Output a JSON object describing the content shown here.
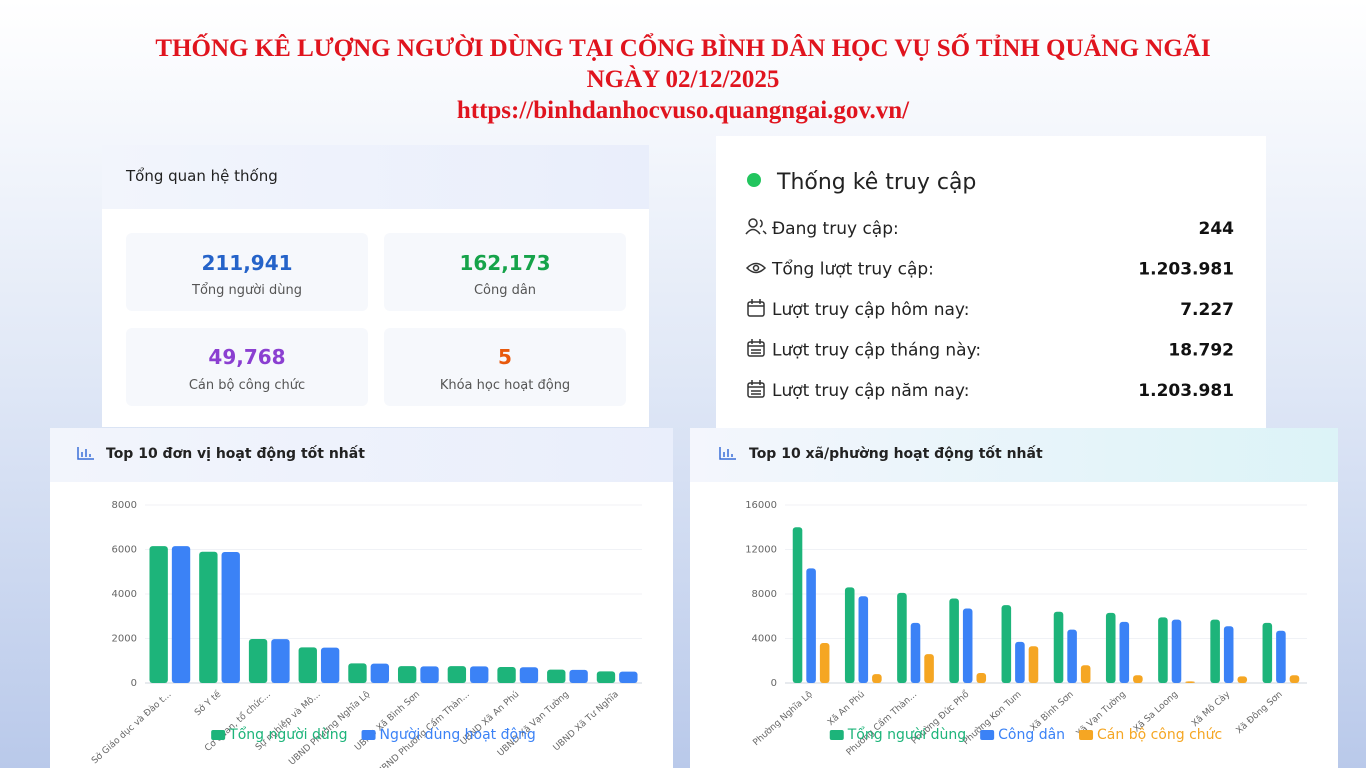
{
  "header": {
    "title": "THỐNG KÊ LƯỢNG NGƯỜI DÙNG TẠI CỔNG BÌNH DÂN HỌC VỤ SỐ TỈNH QUẢNG NGÃI",
    "date": "NGÀY 02/12/2025",
    "url": "https://binhdanhocvuso.quangngai.gov.vn/"
  },
  "overview": {
    "title": "Tổng quan hệ thống",
    "stats": [
      {
        "value": "211,941",
        "label": "Tổng người dùng"
      },
      {
        "value": "162,173",
        "label": "Công dân"
      },
      {
        "value": "49,768",
        "label": "Cán bộ công chức"
      },
      {
        "value": "5",
        "label": "Khóa học hoạt động"
      }
    ]
  },
  "access": {
    "title": "Thống kê truy cập",
    "rows": [
      {
        "label": "Đang truy cập:",
        "value": "244"
      },
      {
        "label": "Tổng lượt truy cập:",
        "value": "1.203.981"
      },
      {
        "label": "Lượt truy cập hôm nay:",
        "value": "7.227"
      },
      {
        "label": "Lượt truy cập tháng này:",
        "value": "18.792"
      },
      {
        "label": "Lượt truy cập năm nay:",
        "value": "1.203.981"
      }
    ]
  },
  "chart_data": [
    {
      "type": "bar",
      "title": "Top 10 đơn vị hoạt động tốt nhất",
      "categories": [
        "Sở Giáo dục và Đào t...",
        "Sở Y tế",
        "Cơ quan, tổ chức...",
        "Sự nghiệp và Mô...",
        "UBND Phường Nghĩa Lộ",
        "UBND Xã Bình Sơn",
        "UBND Phường Cẩm Thàn...",
        "UBND Xã An Phú",
        "UBND Xã Vạn Tường",
        "UBND Xã Tư Nghĩa"
      ],
      "series": [
        {
          "name": "Tổng người dùng",
          "color": "#1db47a",
          "values": [
            6150,
            5900,
            1980,
            1600,
            880,
            760,
            760,
            720,
            600,
            520
          ]
        },
        {
          "name": "Người dùng hoạt động",
          "color": "#3b82f6",
          "values": [
            6150,
            5890,
            1970,
            1590,
            870,
            750,
            750,
            710,
            590,
            510
          ]
        }
      ],
      "ylim": [
        0,
        8000
      ],
      "yticks": [
        0,
        2000,
        4000,
        6000,
        8000
      ],
      "grid": true
    },
    {
      "type": "bar",
      "title": "Top 10 xã/phường hoạt động tốt nhất",
      "categories": [
        "Phường Nghĩa Lộ",
        "Xã An Phú",
        "Phường Cẩm Thàn...",
        "Phường Đức Phổ",
        "Phường Kon Tum",
        "Xã Bình Sơn",
        "Xã Vạn Tường",
        "Xã Sa Loong",
        "Xã Mô Cày",
        "Xã Đông Sơn"
      ],
      "series": [
        {
          "name": "Tổng người dùng",
          "color": "#1db47a",
          "values": [
            14000,
            8600,
            8100,
            7600,
            7000,
            6400,
            6300,
            5900,
            5700,
            5400
          ]
        },
        {
          "name": "Công dân",
          "color": "#3b82f6",
          "values": [
            10300,
            7800,
            5400,
            6700,
            3700,
            4800,
            5500,
            5700,
            5100,
            4700
          ]
        },
        {
          "name": "Cán bộ công chức",
          "color": "#f5a623",
          "values": [
            3600,
            800,
            2600,
            900,
            3300,
            1600,
            700,
            150,
            600,
            700
          ]
        }
      ],
      "ylim": [
        0,
        16000
      ],
      "yticks": [
        0,
        4000,
        8000,
        12000,
        16000
      ],
      "grid": true
    }
  ]
}
